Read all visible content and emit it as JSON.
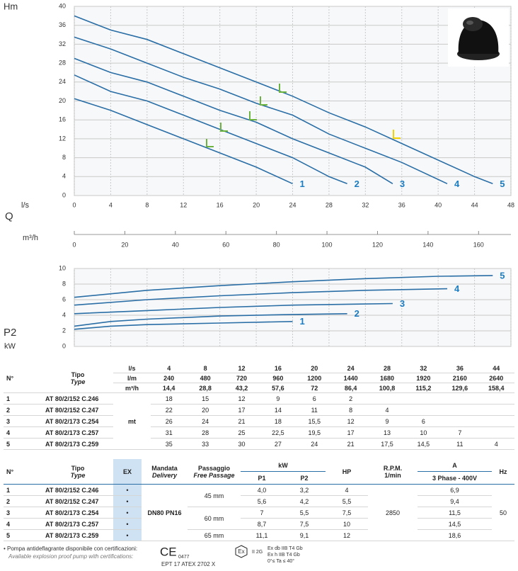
{
  "chart_data": [
    {
      "type": "line",
      "y_label": "Hm",
      "x_label": "l/s",
      "x_title": "Q",
      "x2_label": "m³/h",
      "xlim": [
        0,
        48
      ],
      "xticks": [
        0,
        4,
        8,
        12,
        16,
        20,
        24,
        28,
        32,
        36,
        40,
        44,
        48
      ],
      "ylim": [
        0,
        40
      ],
      "yticks": [
        0,
        4,
        8,
        12,
        16,
        20,
        24,
        28,
        32,
        36,
        40
      ],
      "x2lim": [
        0,
        172.8
      ],
      "x2ticks": [
        0,
        20,
        40,
        60,
        80,
        100,
        120,
        140,
        160
      ],
      "grid": true,
      "series": [
        {
          "name": "1",
          "color": "#2a6ea6",
          "x": [
            0,
            4,
            8,
            12,
            16,
            20,
            24
          ],
          "values": [
            20.5,
            18,
            15,
            12,
            9,
            6,
            2.5
          ]
        },
        {
          "name": "2",
          "color": "#2a6ea6",
          "x": [
            0,
            4,
            8,
            12,
            16,
            20,
            24,
            28,
            30
          ],
          "values": [
            25.5,
            22,
            20,
            17,
            14,
            11,
            8,
            4,
            2.5
          ]
        },
        {
          "name": "3",
          "color": "#2a6ea6",
          "x": [
            0,
            4,
            8,
            12,
            16,
            20,
            24,
            28,
            32,
            35
          ],
          "values": [
            29,
            26,
            24,
            21,
            18,
            15.5,
            12,
            9,
            6,
            2.5
          ]
        },
        {
          "name": "4",
          "color": "#2a6ea6",
          "x": [
            0,
            4,
            8,
            12,
            16,
            20,
            24,
            28,
            32,
            36,
            41
          ],
          "values": [
            33.5,
            31,
            28,
            25,
            22.5,
            19.5,
            17,
            13,
            10,
            7,
            2.5
          ]
        },
        {
          "name": "5",
          "color": "#2a6ea6",
          "x": [
            0,
            4,
            8,
            12,
            16,
            20,
            24,
            28,
            32,
            36,
            44,
            46
          ],
          "values": [
            38,
            35,
            33,
            30,
            27,
            24,
            21,
            17.5,
            14.5,
            11,
            4,
            2.5
          ]
        }
      ]
    },
    {
      "type": "line",
      "y_label": "P2",
      "y_unit": "kW",
      "xlim": [
        0,
        48
      ],
      "ylim": [
        0,
        10
      ],
      "yticks": [
        0,
        2,
        4,
        6,
        8,
        10
      ],
      "grid": true,
      "series": [
        {
          "name": "1",
          "color": "#2a6ea6",
          "x": [
            0,
            4,
            8,
            16,
            24
          ],
          "values": [
            2.2,
            2.6,
            2.8,
            3.0,
            3.2
          ]
        },
        {
          "name": "2",
          "color": "#2a6ea6",
          "x": [
            0,
            4,
            8,
            16,
            24,
            30
          ],
          "values": [
            2.6,
            3.2,
            3.5,
            3.9,
            4.1,
            4.2
          ]
        },
        {
          "name": "3",
          "color": "#2a6ea6",
          "x": [
            0,
            8,
            16,
            24,
            35
          ],
          "values": [
            4.2,
            4.6,
            5.0,
            5.3,
            5.5
          ]
        },
        {
          "name": "4",
          "color": "#2a6ea6",
          "x": [
            0,
            8,
            16,
            24,
            32,
            41
          ],
          "values": [
            5.3,
            6.0,
            6.5,
            6.9,
            7.2,
            7.4
          ]
        },
        {
          "name": "5",
          "color": "#2a6ea6",
          "x": [
            0,
            8,
            16,
            24,
            32,
            40,
            46
          ],
          "values": [
            6.3,
            7.2,
            7.8,
            8.3,
            8.7,
            9.0,
            9.1
          ]
        }
      ]
    }
  ],
  "table1": {
    "n": "N°",
    "tipo": "Tipo",
    "type": "Type",
    "unit": "mt",
    "flow_units": [
      "l/s",
      "l/m",
      "m³/h"
    ],
    "flows": [
      [
        "4",
        "8",
        "12",
        "16",
        "20",
        "24",
        "28",
        "32",
        "36",
        "44"
      ],
      [
        "240",
        "480",
        "720",
        "960",
        "1200",
        "1440",
        "1680",
        "1920",
        "2160",
        "2640"
      ],
      [
        "14,4",
        "28,8",
        "43,2",
        "57,6",
        "72",
        "86,4",
        "100,8",
        "115,2",
        "129,6",
        "158,4"
      ]
    ],
    "rows": [
      {
        "n": "1",
        "model": "AT 80/2/152 C.246",
        "values": [
          "18",
          "15",
          "12",
          "9",
          "6",
          "2"
        ]
      },
      {
        "n": "2",
        "model": "AT 80/2/152 C.247",
        "values": [
          "22",
          "20",
          "17",
          "14",
          "11",
          "8",
          "4"
        ]
      },
      {
        "n": "3",
        "model": "AT 80/2/173 C.254",
        "values": [
          "26",
          "24",
          "21",
          "18",
          "15,5",
          "12",
          "9",
          "6"
        ]
      },
      {
        "n": "4",
        "model": "AT 80/2/173 C.257",
        "values": [
          "31",
          "28",
          "25",
          "22,5",
          "19,5",
          "17",
          "13",
          "10",
          "7"
        ]
      },
      {
        "n": "5",
        "model": "AT 80/2/173 C.259",
        "values": [
          "35",
          "33",
          "30",
          "27",
          "24",
          "21",
          "17,5",
          "14,5",
          "11",
          "4"
        ]
      }
    ]
  },
  "table2": {
    "header": {
      "n": "N°",
      "tipo": "Tipo",
      "type": "Type",
      "ex": "EX",
      "mandata": "Mandata",
      "delivery": "Delivery",
      "passaggio": "Passaggio",
      "free_passage": "Free Passage",
      "kw": "kW",
      "p1": "P1",
      "p2": "P2",
      "hp": "HP",
      "rpm": "R.P.M.",
      "rpm_unit": "1/min",
      "a": "A",
      "phase": "3 Phase - 400V",
      "hz": "Hz"
    },
    "delivery": "DN80 PN16",
    "rpm": "2850",
    "hz": "50",
    "passages": [
      "45 mm",
      "60 mm",
      "65 mm"
    ],
    "rows": [
      {
        "n": "1",
        "model": "AT 80/2/152 C.246",
        "ex": "•",
        "p1": "4,0",
        "p2": "3,2",
        "hp": "4",
        "a": "6,9"
      },
      {
        "n": "2",
        "model": "AT 80/2/152 C.247",
        "ex": "•",
        "p1": "5,6",
        "p2": "4,2",
        "hp": "5,5",
        "a": "9,4"
      },
      {
        "n": "3",
        "model": "AT 80/2/173 C.254",
        "ex": "•",
        "p1": "7",
        "p2": "5,5",
        "hp": "7,5",
        "a": "11,5"
      },
      {
        "n": "4",
        "model": "AT 80/2/173 C.257",
        "ex": "•",
        "p1": "8,7",
        "p2": "7,5",
        "hp": "10",
        "a": "14,5"
      },
      {
        "n": "5",
        "model": "AT 80/2/173 C.259",
        "ex": "•",
        "p1": "11,1",
        "p2": "9,1",
        "hp": "12",
        "a": "18,6"
      }
    ]
  },
  "footer": {
    "note": "• Pompa antideflagrante disponibile con certificazioni:",
    "note_en": "Available explosion proof pump with certifications:",
    "ce": "CE",
    "ce_number": "0477",
    "atex": "EPT 17 ATEX 2702 X",
    "ex": "Ex",
    "group": "II 2G",
    "marks": [
      "Ex db IIB T4 Gb",
      "Ex h IIB T4 Gb",
      "0°≤ Ta ≤ 40°"
    ]
  }
}
